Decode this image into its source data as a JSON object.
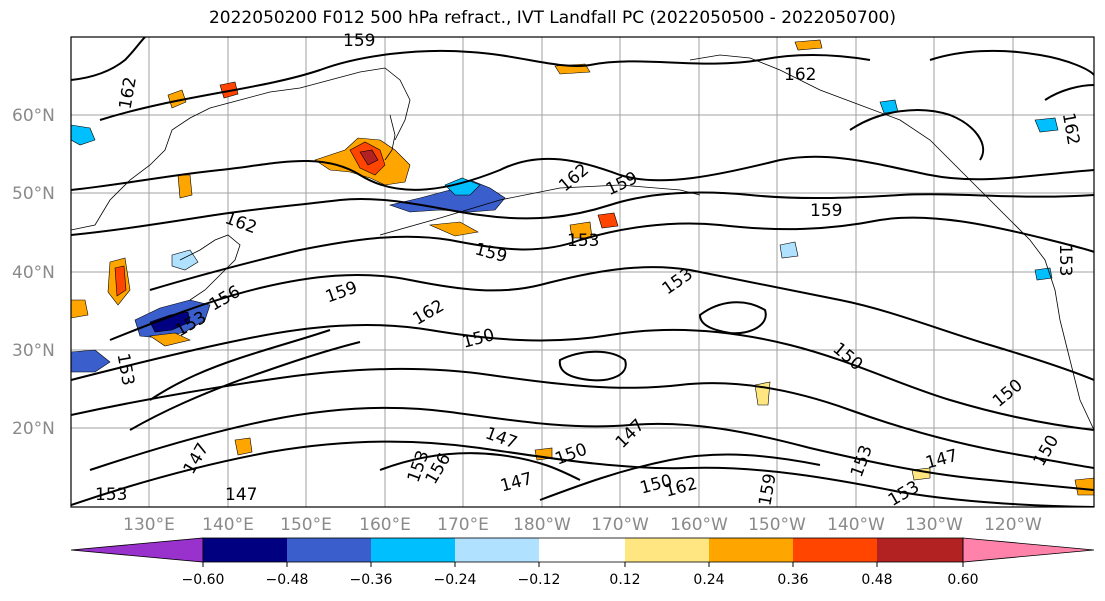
{
  "title": "2022050200 F012 500 hPa refract., IVT Landfall PC (2022050500 - 2022050700)",
  "lat_labels": [
    "60°N",
    "50°N",
    "40°N",
    "30°N",
    "20°N"
  ],
  "lon_labels": [
    "130°E",
    "140°E",
    "150°E",
    "160°E",
    "170°E",
    "180°W",
    "170°W",
    "160°W",
    "150°W",
    "140°W",
    "130°W",
    "120°W"
  ],
  "contour_labels": [
    "159",
    "162",
    "162",
    "162",
    "159",
    "159",
    "153",
    "159",
    "153",
    "162",
    "156",
    "153",
    "159",
    "150",
    "162",
    "153",
    "150",
    "150",
    "147",
    "150",
    "147",
    "147",
    "147",
    "153",
    "156",
    "147",
    "150",
    "162",
    "159",
    "153",
    "147",
    "153",
    "150",
    "153",
    "162",
    "153"
  ],
  "colorbar": {
    "colors": [
      "#9932cc",
      "#000080",
      "#3a5fcd",
      "#00bfff",
      "#b0e2ff",
      "#ffffff",
      "#ffe680",
      "#ffa500",
      "#ff4500",
      "#b22222",
      "#ff82ab"
    ],
    "tick_labels": [
      "−0.60",
      "−0.48",
      "−0.36",
      "−0.24",
      "−0.12",
      "0.12",
      "0.24",
      "0.36",
      "0.48",
      "0.60"
    ]
  }
}
